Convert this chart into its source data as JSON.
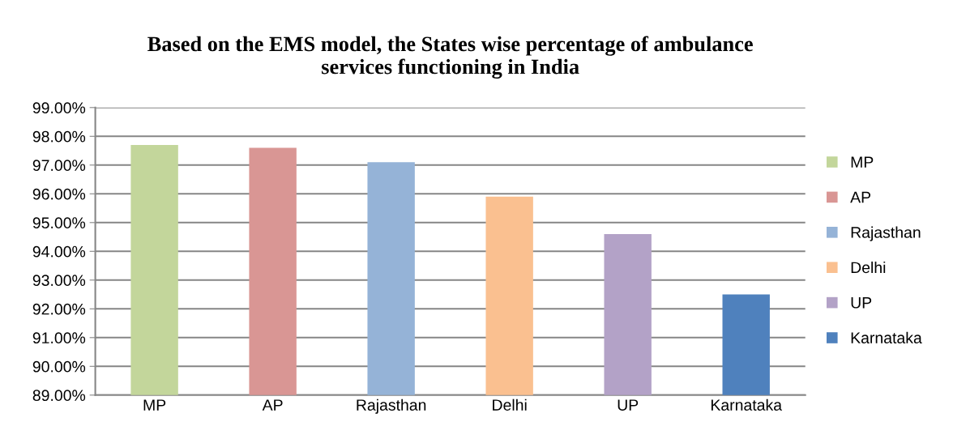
{
  "chart_data": {
    "type": "bar",
    "title": "Based on the EMS model, the States wise percentage of ambulance\nservices functioning in India",
    "categories": [
      "MP",
      "AP",
      "Rajasthan",
      "Delhi",
      "UP",
      "Karnataka"
    ],
    "series": [
      {
        "name": "MP",
        "color": "#c3d69b",
        "values": [
          97.7,
          null,
          null,
          null,
          null,
          null
        ]
      },
      {
        "name": "AP",
        "color": "#d99694",
        "values": [
          null,
          97.6,
          null,
          null,
          null,
          null
        ]
      },
      {
        "name": "Rajasthan",
        "color": "#95b3d7",
        "values": [
          null,
          null,
          97.1,
          null,
          null,
          null
        ]
      },
      {
        "name": "Delhi",
        "color": "#fac090",
        "values": [
          null,
          null,
          null,
          95.9,
          null,
          null
        ]
      },
      {
        "name": "UP",
        "color": "#b3a2c7",
        "values": [
          null,
          null,
          null,
          null,
          94.6,
          null
        ]
      },
      {
        "name": "Karnataka",
        "color": "#4f81bd",
        "values": [
          null,
          null,
          null,
          null,
          null,
          92.5
        ]
      }
    ],
    "ylim": [
      89,
      99
    ],
    "yticks": [
      {
        "value": 89,
        "label": "89.00%"
      },
      {
        "value": 90,
        "label": "90.00%"
      },
      {
        "value": 91,
        "label": "91.00%"
      },
      {
        "value": 92,
        "label": "92.00%"
      },
      {
        "value": 93,
        "label": "93.00%"
      },
      {
        "value": 94,
        "label": "94.00%"
      },
      {
        "value": 95,
        "label": "95.00%"
      },
      {
        "value": 96,
        "label": "96.00%"
      },
      {
        "value": 97,
        "label": "97.00%"
      },
      {
        "value": 98,
        "label": "98.00%"
      },
      {
        "value": 99,
        "label": "99.00%"
      }
    ],
    "grid": "y",
    "legend": "right"
  }
}
